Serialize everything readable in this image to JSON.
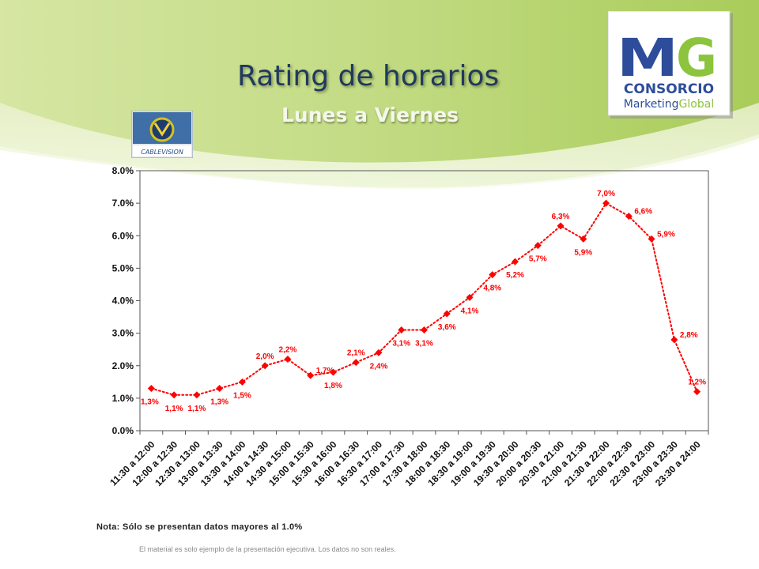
{
  "slide": {
    "title": "Rating de horarios",
    "subtitle": "Lunes a Viernes",
    "note": "Nota: Sólo se presentan datos mayores al 1.0%",
    "footer": "El material es solo ejemplo de la presentación ejecutiva. Los datos no son reales."
  },
  "logos": {
    "cablevision": "CABLEVISION",
    "mg_letters": "MG",
    "mg_line1": "CONSORCIO",
    "mg_line2a": "Marketing",
    "mg_line2b": "Global"
  },
  "colors": {
    "series": "#ff0000",
    "title": "#203a5c",
    "background_green": "#b7d46a"
  },
  "chart_data": {
    "type": "line",
    "categories": [
      "11:30 a 12:00",
      "12:00 a 12:30",
      "12:30 a 13:00",
      "13:00 a 13:30",
      "13:30 a 14:00",
      "14:00 a 14:30",
      "14:30 a 15:00",
      "15:00 a 15:30",
      "15:30 a 16:00",
      "16:00 a 16:30",
      "16:30 a 17:00",
      "17:00 a 17:30",
      "17:30 a 18:00",
      "18:00 a 18:30",
      "18:30 a 19:00",
      "19:00 a 19:30",
      "19:30 a 20:00",
      "20:00 a 20:30",
      "20:30 a 21:00",
      "21:00 a 21:30",
      "21:30 a 22:00",
      "22:00 a 22:30",
      "22:30 a 23:00",
      "23:00 a 23:30",
      "23:30 a 24:00"
    ],
    "values": [
      1.3,
      1.1,
      1.1,
      1.3,
      1.5,
      2.0,
      2.2,
      1.7,
      1.8,
      2.1,
      2.4,
      3.1,
      3.1,
      3.6,
      4.1,
      4.8,
      5.2,
      5.7,
      6.3,
      5.9,
      7.0,
      6.6,
      5.9,
      2.8,
      1.2
    ],
    "data_labels": [
      "1,3%",
      "1,1%",
      "1,1%",
      "1,3%",
      "1,5%",
      "2,0%",
      "2,2%",
      "1,7%",
      "1,8%",
      "2,1%",
      "2,4%",
      "3,1%",
      "3,1%",
      "3,6%",
      "4,1%",
      "4,8%",
      "5,2%",
      "5,7%",
      "6,3%",
      "5,9%",
      "7,0%",
      "6,6%",
      "5,9%",
      "2,8%",
      "1,2%"
    ],
    "label_pos": [
      "below",
      "below",
      "below",
      "below",
      "below",
      "above",
      "above",
      "right",
      "below",
      "above",
      "below",
      "below",
      "below",
      "below",
      "below",
      "below",
      "below",
      "below",
      "above",
      "below",
      "above",
      "right",
      "right",
      "right",
      "above"
    ],
    "y_ticks": [
      "0.0%",
      "1.0%",
      "2.0%",
      "3.0%",
      "4.0%",
      "5.0%",
      "6.0%",
      "7.0%",
      "8.0%"
    ],
    "ylim": [
      0,
      8
    ],
    "grid": false,
    "legend": "none",
    "line_style": "dotted",
    "marker": "diamond"
  }
}
